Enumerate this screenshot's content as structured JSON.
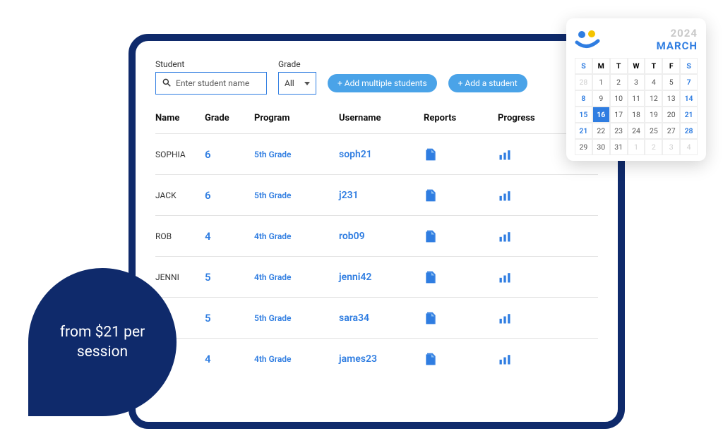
{
  "colors": {
    "brand_navy": "#0f2a6b",
    "brand_blue": "#2f7de1",
    "pill_blue": "#4aa3e8",
    "muted_gray": "#cfcfcf",
    "border_gray": "#e3e3e3"
  },
  "filters": {
    "student_label": "Student",
    "student_placeholder": "Enter student name",
    "grade_label": "Grade",
    "grade_value": "All",
    "add_multiple_label": "+ Add multiple students",
    "add_one_label": "+ Add a student"
  },
  "table": {
    "columns": {
      "name": "Name",
      "grade": "Grade",
      "program": "Program",
      "username": "Username",
      "reports": "Reports",
      "progress": "Progress"
    },
    "rows": [
      {
        "name": "SOPHIA",
        "grade": "6",
        "program": "5th Grade",
        "username": "soph21"
      },
      {
        "name": "JACK",
        "grade": "6",
        "program": "5th Grade",
        "username": "j231"
      },
      {
        "name": "ROB",
        "grade": "4",
        "program": "4th Grade",
        "username": "rob09"
      },
      {
        "name": "JENNI",
        "grade": "5",
        "program": "4th Grade",
        "username": "jenni42"
      },
      {
        "name": "RA",
        "grade": "5",
        "program": "5th Grade",
        "username": "sara34"
      },
      {
        "name": "MES",
        "grade": "4",
        "program": "4th Grade",
        "username": "james23"
      }
    ]
  },
  "price_badge": {
    "text": "from $21 per session"
  },
  "calendar": {
    "year": "2024",
    "month": "MARCH",
    "dow": [
      "S",
      "M",
      "T",
      "W",
      "T",
      "F",
      "S"
    ],
    "weekend_col_indices": [
      0,
      6
    ],
    "selected_day": 16,
    "cells": [
      {
        "d": "28",
        "muted": true
      },
      {
        "d": "1"
      },
      {
        "d": "2"
      },
      {
        "d": "3"
      },
      {
        "d": "4"
      },
      {
        "d": "5"
      },
      {
        "d": "7",
        "blue": true
      },
      {
        "d": "8",
        "blue": true
      },
      {
        "d": "9"
      },
      {
        "d": "10"
      },
      {
        "d": "11"
      },
      {
        "d": "12"
      },
      {
        "d": "13"
      },
      {
        "d": "14",
        "blue": true
      },
      {
        "d": "15",
        "blue": true
      },
      {
        "d": "16",
        "selected": true
      },
      {
        "d": "17"
      },
      {
        "d": "18"
      },
      {
        "d": "19"
      },
      {
        "d": "20"
      },
      {
        "d": "21",
        "blue": true
      },
      {
        "d": "21",
        "blue": true
      },
      {
        "d": "22"
      },
      {
        "d": "23"
      },
      {
        "d": "24"
      },
      {
        "d": "25"
      },
      {
        "d": "27"
      },
      {
        "d": "28",
        "blue": true
      },
      {
        "d": "29"
      },
      {
        "d": "30"
      },
      {
        "d": "31"
      },
      {
        "d": "1",
        "muted": true
      },
      {
        "d": "2",
        "muted": true
      },
      {
        "d": "3",
        "muted": true
      },
      {
        "d": "4",
        "muted": true
      }
    ],
    "logo_colors": {
      "left": "#2f7de1",
      "right": "#f5c400",
      "arc": "#2f7de1"
    }
  }
}
